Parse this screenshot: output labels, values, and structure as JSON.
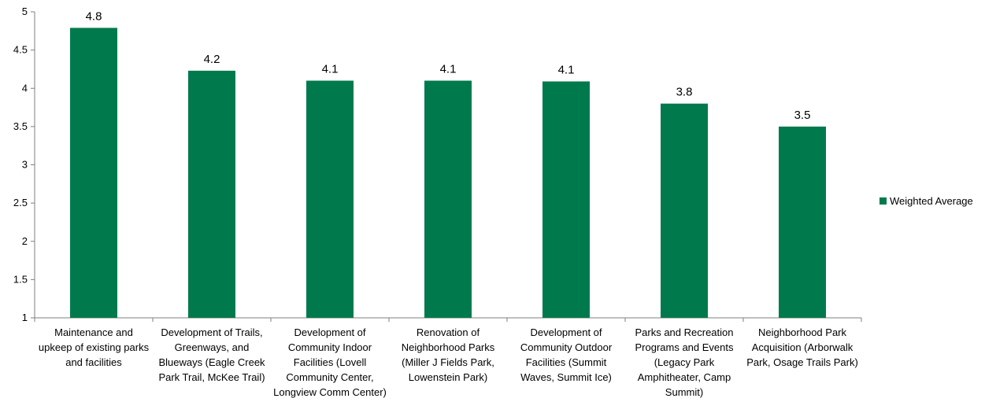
{
  "chart_data": {
    "type": "bar",
    "title": "",
    "xlabel": "",
    "ylabel": "",
    "ylim": [
      1,
      5
    ],
    "yticks": [
      "1",
      "1.5",
      "2",
      "2.5",
      "3",
      "3.5",
      "4",
      "4.5",
      "5"
    ],
    "grid": false,
    "legend_position": "right",
    "color": "#007a4d",
    "categories": [
      [
        "Maintenance and",
        "upkeep of existing parks",
        "and facilities"
      ],
      [
        "Development of Trails,",
        "Greenways, and",
        "Blueways (Eagle Creek",
        "Park Trail, McKee Trail)"
      ],
      [
        "Development of",
        "Community Indoor",
        "Facilities (Lovell",
        "Community Center,",
        "Longview Comm Center)"
      ],
      [
        "Renovation of",
        "Neighborhood Parks",
        "(Miller J Fields Park,",
        "Lowenstein Park)"
      ],
      [
        "Development of",
        "Community Outdoor",
        "Facilities  (Summit",
        "Waves, Summit Ice)"
      ],
      [
        "Parks and Recreation",
        "Programs and Events",
        "(Legacy Park",
        "Amphitheater, Camp",
        "Summit)"
      ],
      [
        "Neighborhood Park",
        "Acquisition (Arborwalk",
        "Park, Osage Trails Park)"
      ]
    ],
    "series": [
      {
        "name": "Weighted Average",
        "values": [
          4.79,
          4.23,
          4.1,
          4.1,
          4.09,
          3.8,
          3.5
        ],
        "labels": [
          "4.8",
          "4.2",
          "4.1",
          "4.1",
          "4.1",
          "3.8",
          "3.5"
        ]
      }
    ]
  }
}
